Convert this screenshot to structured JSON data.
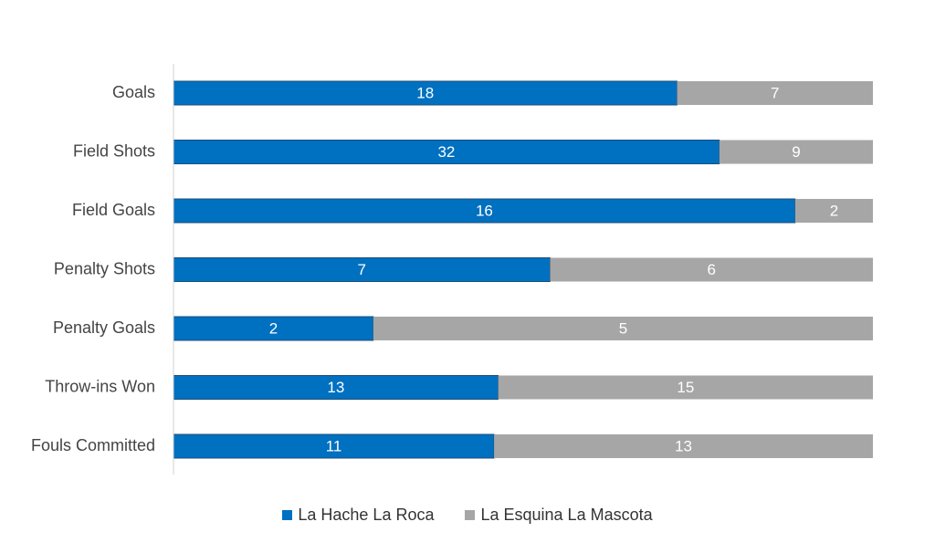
{
  "chart_data": {
    "type": "bar",
    "orientation": "horizontal",
    "stacked": "percent",
    "categories": [
      "Goals",
      "Field Shots",
      "Field Goals",
      "Penalty Shots",
      "Penalty Goals",
      "Throw-ins Won",
      "Fouls Committed"
    ],
    "series": [
      {
        "name": "La Hache La Roca",
        "color": "#0070C0",
        "values": [
          18,
          32,
          16,
          7,
          2,
          13,
          11
        ]
      },
      {
        "name": "La Esquina La Mascota",
        "color": "#A6A6A6",
        "values": [
          7,
          9,
          2,
          6,
          5,
          15,
          13
        ]
      }
    ],
    "legend_position": "bottom",
    "grid": false
  }
}
